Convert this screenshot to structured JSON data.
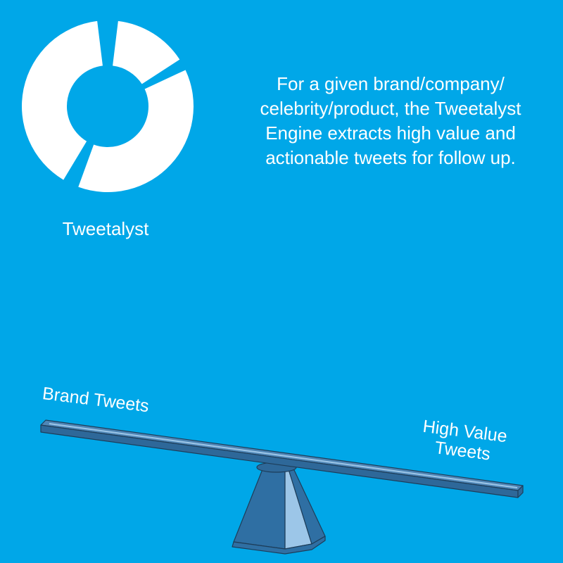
{
  "colors": {
    "background": "#00a7e8",
    "text": "#ffffff",
    "logo": "#ffffff",
    "beam_top": "#4f86b6",
    "beam_side": "#2e6899",
    "beam_highlight": "#9cc6e8",
    "fulcrum": "#2f6fa3",
    "fulcrum_light": "#9cc6e8",
    "outline": "#1d3d59"
  },
  "logo": {
    "icon": "donut-chart-icon",
    "name": "Tweetalyst"
  },
  "description": "For a given brand/company/ celebrity/product, the Tweetalyst Engine extracts high value and actionable tweets for follow up.",
  "seesaw": {
    "icon": "seesaw-icon",
    "left_label": "Brand Tweets",
    "right_label": "High Value Tweets"
  }
}
